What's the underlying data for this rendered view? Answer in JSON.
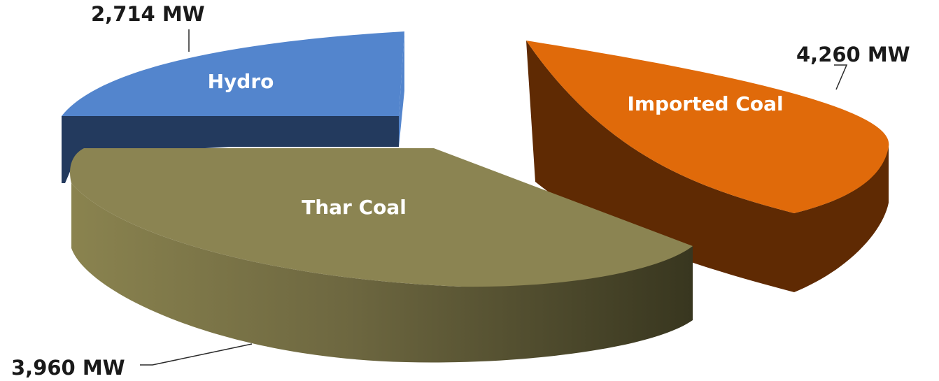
{
  "chart_data": {
    "type": "pie",
    "style": "3d-exploded",
    "title": "",
    "legend": "none",
    "slices": [
      {
        "category": "Hydro",
        "value": 2714,
        "value_label": "2,714 MW",
        "color": "#5385cd",
        "side_color": "#233a5e"
      },
      {
        "category": "Imported Coal",
        "value": 4260,
        "value_label": "4,260 MW",
        "color": "#e06a0a",
        "side_color": "#5f2a03"
      },
      {
        "category": "Thar Coal",
        "value": 3960,
        "value_label": "3,960 MW",
        "color": "#8b8452",
        "side_color": "#6e6840",
        "side_color_dark": "#3c3922"
      }
    ]
  }
}
